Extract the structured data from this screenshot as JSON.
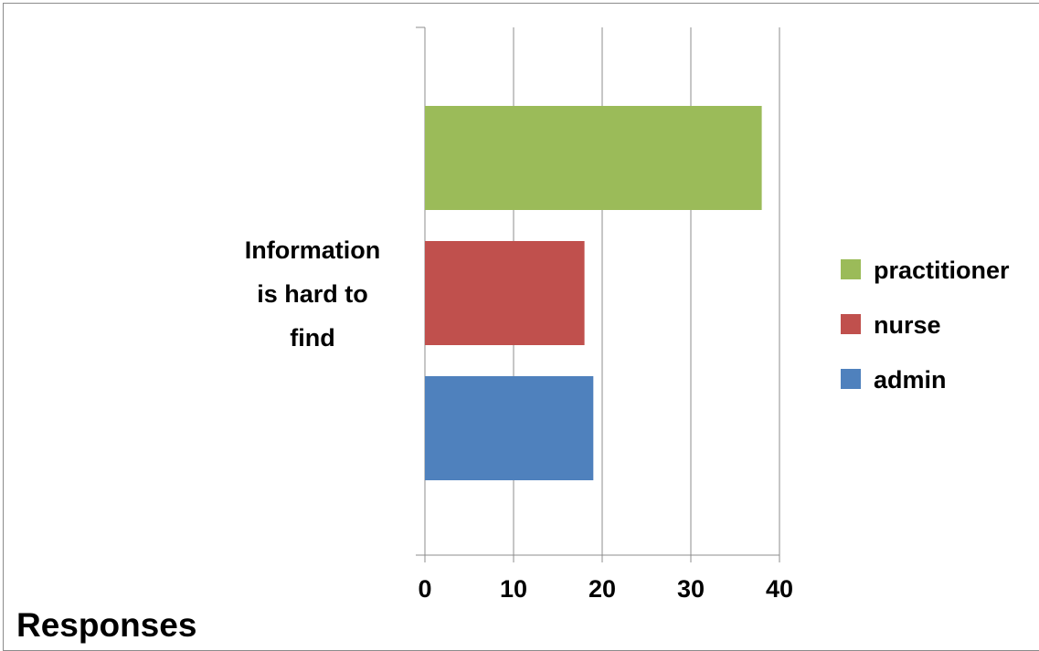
{
  "chart_data": {
    "type": "bar",
    "orientation": "horizontal",
    "categories": [
      "Information is hard to find"
    ],
    "category_label_lines": [
      "Information",
      "is hard to",
      "find"
    ],
    "series": [
      {
        "name": "practitioner",
        "values": [
          38
        ],
        "color": "#9BBB59"
      },
      {
        "name": "nurse",
        "values": [
          18
        ],
        "color": "#C0504D"
      },
      {
        "name": "admin",
        "values": [
          19
        ],
        "color": "#4F81BD"
      }
    ],
    "xlim": [
      0,
      40
    ],
    "x_ticks": [
      0,
      10,
      20,
      30,
      40
    ],
    "grid": true,
    "legend_position": "right"
  },
  "footer_label": "Responses"
}
